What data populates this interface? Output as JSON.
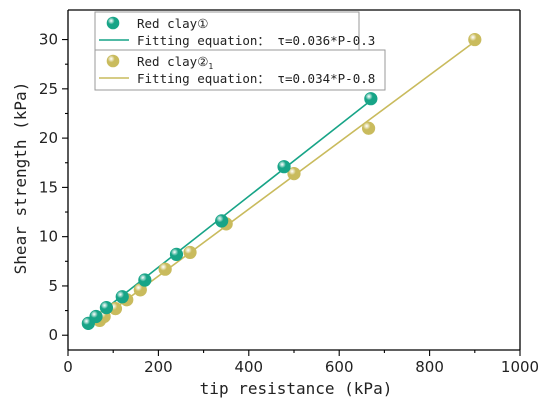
{
  "chart_data": {
    "type": "scatter",
    "xlabel": "tip resistance (kPa)",
    "ylabel": "Shear strength (kPa)",
    "xlim": [
      0,
      1000
    ],
    "ylim": [
      -1.5,
      33
    ],
    "xticks": [
      0,
      200,
      400,
      600,
      800,
      1000
    ],
    "yticks": [
      0,
      5,
      10,
      15,
      20,
      25,
      30
    ],
    "grid": false,
    "legend_position": "top-left",
    "series": [
      {
        "name": "Red clay①",
        "color": "#17a487",
        "marker": "circle",
        "points": [
          [
            45,
            1.2
          ],
          [
            62,
            1.9
          ],
          [
            85,
            2.8
          ],
          [
            120,
            3.9
          ],
          [
            170,
            5.6
          ],
          [
            240,
            8.2
          ],
          [
            340,
            11.6
          ],
          [
            478,
            17.1
          ],
          [
            670,
            24.0
          ]
        ],
        "fit": {
          "label": "Fitting equation： τ=0.036*P-0.3",
          "slope": 0.036,
          "intercept": -0.3,
          "x_range": [
            45,
            672
          ]
        }
      },
      {
        "name": "Red clay②",
        "name_subscript": "1",
        "color": "#c9bb5d",
        "marker": "circle",
        "points": [
          [
            70,
            1.5
          ],
          [
            80,
            1.9
          ],
          [
            105,
            2.7
          ],
          [
            130,
            3.6
          ],
          [
            160,
            4.6
          ],
          [
            215,
            6.7
          ],
          [
            270,
            8.4
          ],
          [
            350,
            11.3
          ],
          [
            500,
            16.4
          ],
          [
            665,
            21.0
          ],
          [
            900,
            30.0
          ]
        ],
        "fit": {
          "label": "Fitting equation： τ=0.034*P-0.8",
          "slope": 0.034,
          "intercept": -0.8,
          "x_range": [
            65,
            902
          ]
        }
      }
    ]
  }
}
